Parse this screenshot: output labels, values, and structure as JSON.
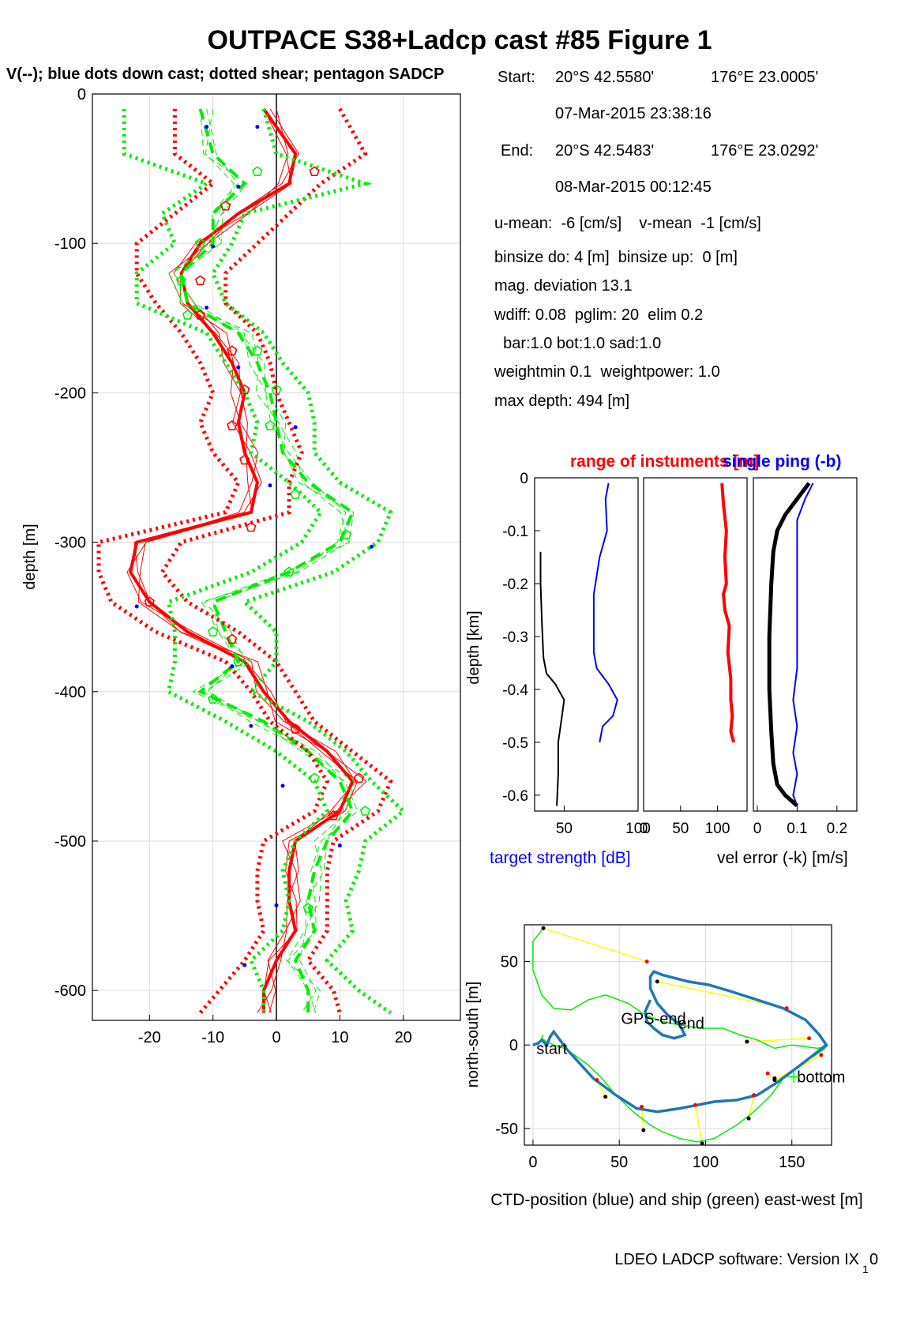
{
  "figure": {
    "title": "OUTPACE S38+Ladcp cast #85  Figure 1",
    "subtitle": "V(--); blue dots down cast; dotted shear; pentagon SADCP",
    "software_note_main": "LDEO LADCP software: Version IX",
    "software_note_sub": "1",
    "software_note_tail": "0"
  },
  "info": {
    "start": {
      "label": "Start:",
      "lat": "20°S 42.5580'",
      "lon": "176°E 23.0005'",
      "time": "07-Mar-2015 23:38:16"
    },
    "end": {
      "label": "End:",
      "lat": "20°S 42.5483'",
      "lon": "176°E 23.0292'",
      "time": "08-Mar-2015 00:12:45"
    },
    "lines": [
      "u-mean:  -6 [cm/s]    v-mean  -1 [cm/s]",
      "binsize do: 4 [m]  binsize up:  0 [m]",
      "mag. deviation 13.1",
      "wdiff: 0.08  pglim: 20  elim 0.2",
      "  bar:1.0 bot:1.0 sad:1.0",
      "weightmin 0.1  weightpower: 1.0",
      "max depth: 494 [m]"
    ]
  },
  "colors": {
    "red": "#ff0000",
    "green": "#00ee00",
    "blue": "#0000ff",
    "yellow": "#ffff00",
    "ctd_blue": "#1f77b4",
    "grid": "#dcdcdc"
  },
  "chart_data": [
    {
      "id": "velocity_profile",
      "type": "line",
      "ylabel": "depth [m]",
      "xlim": [
        -29,
        29
      ],
      "ylim": [
        -620,
        0
      ],
      "xticks": [
        -20,
        -10,
        0,
        10,
        20
      ],
      "yticks": [
        0,
        -100,
        -200,
        -300,
        -400,
        -500,
        -600
      ],
      "grid": true,
      "depths": [
        -10,
        -40,
        -60,
        -80,
        -100,
        -120,
        -140,
        -160,
        -180,
        -200,
        -220,
        -240,
        -260,
        -280,
        -300,
        -320,
        -340,
        -360,
        -380,
        -400,
        -420,
        -440,
        -460,
        -480,
        -500,
        -520,
        -540,
        -560,
        -580,
        -600,
        -615
      ],
      "series": [
        {
          "name": "u",
          "style": "red-solid",
          "values": [
            -2,
            3,
            2,
            -6,
            -12,
            -15,
            -14,
            -10,
            -7,
            -5,
            -6,
            -5,
            -3,
            -4,
            -22,
            -23,
            -20,
            -14,
            -5,
            -2,
            2,
            8,
            12,
            10,
            3,
            2,
            2,
            3,
            0,
            -2,
            -2
          ]
        },
        {
          "name": "v",
          "style": "green-dashed",
          "values": [
            -12,
            -10,
            -5,
            -10,
            -10,
            -15,
            -14,
            -6,
            -3,
            -1,
            0,
            1,
            5,
            12,
            10,
            2,
            -10,
            -8,
            -6,
            -12,
            -2,
            5,
            10,
            12,
            8,
            6,
            5,
            6,
            3,
            5,
            5
          ]
        },
        {
          "name": "u-shear",
          "style": "red-dotted",
          "values": [
            -16,
            -16,
            -10,
            -16,
            -22,
            -22,
            -19,
            -15,
            -12,
            -10,
            -12,
            -10,
            -6,
            -8,
            -28,
            -28,
            -26,
            -19,
            -8,
            -4,
            -1,
            5,
            8,
            6,
            -2,
            -3,
            -3,
            -2,
            -5,
            -9,
            -12
          ]
        },
        {
          "name": "u-shear-hi",
          "style": "red-dotted",
          "values": [
            10,
            14,
            7,
            2,
            -3,
            -8,
            -8,
            -3,
            -1,
            0,
            2,
            4,
            2,
            2,
            -15,
            -18,
            -14,
            -6,
            0,
            3,
            6,
            12,
            18,
            16,
            9,
            8,
            8,
            8,
            5,
            9,
            10
          ]
        },
        {
          "name": "v-shear",
          "style": "green-dotted",
          "values": [
            -24,
            -24,
            -11,
            -18,
            -16,
            -22,
            -22,
            -11,
            -8,
            -5,
            -3,
            -4,
            2,
            7,
            4,
            -4,
            -17,
            -16,
            -16,
            -17,
            -8,
            0,
            6,
            8,
            3,
            1,
            2,
            1,
            -4,
            -2,
            -2
          ]
        },
        {
          "name": "v-shear-hi",
          "style": "green-dotted",
          "values": [
            -2,
            0,
            14,
            -5,
            -7,
            -10,
            -8,
            -2,
            1,
            5,
            6,
            6,
            10,
            18,
            16,
            9,
            -5,
            0,
            0,
            -4,
            5,
            11,
            15,
            20,
            14,
            13,
            11,
            12,
            8,
            13,
            18
          ]
        }
      ],
      "sadcp_pentagon_u": [
        {
          "x": 6,
          "y": -52
        },
        {
          "x": -8,
          "y": -75
        },
        {
          "x": -12,
          "y": -125
        },
        {
          "x": -12,
          "y": -148
        },
        {
          "x": -7,
          "y": -172
        },
        {
          "x": -5,
          "y": -198
        },
        {
          "x": -7,
          "y": -222
        },
        {
          "x": -5,
          "y": -245
        },
        {
          "x": -4,
          "y": -290
        },
        {
          "x": -20,
          "y": -340
        },
        {
          "x": -7,
          "y": -365
        },
        {
          "x": 3,
          "y": -425
        },
        {
          "x": 13,
          "y": -458
        },
        {
          "x": 9,
          "y": -483
        }
      ],
      "sadcp_pentagon_v": [
        {
          "x": -3,
          "y": -52
        },
        {
          "x": -12,
          "y": -100
        },
        {
          "x": -15,
          "y": -125
        },
        {
          "x": -14,
          "y": -148
        },
        {
          "x": -3,
          "y": -172
        },
        {
          "x": 0,
          "y": -198
        },
        {
          "x": -1,
          "y": -222
        },
        {
          "x": 3,
          "y": -268
        },
        {
          "x": 11,
          "y": -295
        },
        {
          "x": 2,
          "y": -320
        },
        {
          "x": -10,
          "y": -360
        },
        {
          "x": -6,
          "y": -380
        },
        {
          "x": -10,
          "y": -405
        },
        {
          "x": 6,
          "y": -458
        },
        {
          "x": 14,
          "y": -480
        },
        {
          "x": 5,
          "y": -545
        }
      ],
      "downcast_dots": [
        {
          "x": -11,
          "y": -22
        },
        {
          "x": -3,
          "y": -22
        },
        {
          "x": -6,
          "y": -62
        },
        {
          "x": -10,
          "y": -102
        },
        {
          "x": -11,
          "y": -143
        },
        {
          "x": -6,
          "y": -183
        },
        {
          "x": 3,
          "y": -223
        },
        {
          "x": -1,
          "y": -262
        },
        {
          "x": 15,
          "y": -303
        },
        {
          "x": -22,
          "y": -343
        },
        {
          "x": -7,
          "y": -383
        },
        {
          "x": -4,
          "y": -423
        },
        {
          "x": 1,
          "y": -463
        },
        {
          "x": 10,
          "y": -503
        },
        {
          "x": 0,
          "y": -543
        },
        {
          "x": -5,
          "y": -583
        }
      ]
    },
    {
      "id": "target_strength",
      "type": "line",
      "ylabel": "depth [km]",
      "xlabel": "target strength [dB]",
      "xlim": [
        30,
        100
      ],
      "ylim": [
        -0.63,
        0
      ],
      "xticks": [
        50,
        100
      ],
      "yticks": [
        0,
        -0.1,
        -0.2,
        -0.3,
        -0.4,
        -0.5,
        -0.6
      ],
      "series": [
        {
          "name": "target strength",
          "color": "blue",
          "x": [
            80,
            78,
            79,
            74,
            70,
            70,
            70,
            72,
            80,
            86,
            83,
            76,
            74
          ],
          "y": [
            -0.01,
            -0.04,
            -0.1,
            -0.15,
            -0.22,
            -0.28,
            -0.33,
            -0.36,
            -0.39,
            -0.42,
            -0.45,
            -0.47,
            -0.5
          ]
        },
        {
          "name": "range",
          "color": "black",
          "x": [
            34,
            34,
            35,
            36,
            38,
            44,
            50,
            48,
            46,
            46,
            45
          ],
          "y": [
            -0.14,
            -0.2,
            -0.28,
            -0.34,
            -0.37,
            -0.39,
            -0.42,
            -0.46,
            -0.5,
            -0.56,
            -0.62
          ]
        }
      ]
    },
    {
      "id": "range_of_instruments",
      "type": "line",
      "title": "range of instuments [m]",
      "xlim": [
        0,
        140
      ],
      "ylim": [
        -0.63,
        0
      ],
      "xticks": [
        0,
        50,
        100
      ],
      "series": [
        {
          "name": "range",
          "color": "red",
          "x": [
            106,
            108,
            112,
            110,
            112,
            108,
            110,
            116,
            114,
            118,
            118,
            120,
            118,
            122
          ],
          "y": [
            -0.01,
            -0.05,
            -0.1,
            -0.15,
            -0.2,
            -0.22,
            -0.25,
            -0.28,
            -0.33,
            -0.38,
            -0.42,
            -0.45,
            -0.48,
            -0.5
          ]
        }
      ]
    },
    {
      "id": "single_ping",
      "type": "line",
      "title": "single ping (-b)",
      "xlabel": "vel error (-k) [m/s]",
      "xlim": [
        -0.01,
        0.25
      ],
      "ylim": [
        -0.63,
        0
      ],
      "xticks": [
        0,
        0.1,
        0.2
      ],
      "series": [
        {
          "name": "single ping",
          "color": "blue",
          "x": [
            0.14,
            0.12,
            0.1,
            0.1,
            0.1,
            0.1,
            0.1,
            0.09,
            0.1,
            0.09,
            0.1,
            0.09,
            0.1
          ],
          "y": [
            -0.01,
            -0.04,
            -0.08,
            -0.15,
            -0.22,
            -0.3,
            -0.36,
            -0.42,
            -0.47,
            -0.52,
            -0.56,
            -0.6,
            -0.62
          ]
        },
        {
          "name": "vel error",
          "color": "black",
          "x": [
            0.13,
            0.1,
            0.07,
            0.05,
            0.04,
            0.035,
            0.03,
            0.03,
            0.035,
            0.04,
            0.05,
            0.07,
            0.1
          ],
          "y": [
            -0.01,
            -0.04,
            -0.07,
            -0.1,
            -0.14,
            -0.2,
            -0.3,
            -0.4,
            -0.48,
            -0.54,
            -0.58,
            -0.6,
            -0.62
          ]
        }
      ]
    },
    {
      "id": "positions",
      "type": "line",
      "xlabel": "CTD-position (blue) and ship (green) east-west [m]",
      "ylabel": "north-south [m]",
      "xlim": [
        -5,
        173
      ],
      "ylim": [
        -60,
        72
      ],
      "xticks": [
        0,
        50,
        100,
        150
      ],
      "yticks": [
        50,
        0,
        -50
      ],
      "annotations": [
        {
          "text": "start",
          "x": 2,
          "y": -2
        },
        {
          "text": "GPS-end",
          "x": 51,
          "y": 16
        },
        {
          "text": "end",
          "x": 84,
          "y": 13
        },
        {
          "text": "bottom",
          "x": 153,
          "y": -19
        }
      ],
      "ctd_track": {
        "x": [
          0,
          3,
          5,
          8,
          10,
          12,
          20,
          35,
          48,
          60,
          72,
          85,
          95,
          105,
          118,
          130,
          142,
          155,
          165,
          170,
          166,
          158,
          145,
          130,
          115,
          102,
          90,
          75,
          70,
          68,
          68,
          72,
          78,
          85,
          88,
          82,
          75,
          70,
          66,
          65,
          68
        ],
        "y": [
          0,
          1,
          3,
          0,
          5,
          8,
          -3,
          -20,
          -30,
          -38,
          -40,
          -38,
          -36,
          -34,
          -33,
          -30,
          -22,
          -12,
          -4,
          0,
          6,
          15,
          22,
          27,
          32,
          36,
          38,
          42,
          44,
          41,
          34,
          25,
          18,
          12,
          6,
          4,
          6,
          10,
          14,
          20,
          27
        ]
      },
      "ship_track": {
        "x": [
          6,
          0,
          0,
          5,
          12,
          22,
          32,
          42,
          55,
          65,
          75,
          85,
          97,
          110,
          120,
          130,
          140,
          150,
          165,
          170,
          168,
          158,
          145,
          138,
          128,
          118,
          105,
          95,
          85,
          75,
          68,
          58,
          48,
          40,
          32,
          24,
          18,
          12,
          8,
          5,
          6
        ],
        "y": [
          70,
          62,
          45,
          30,
          22,
          21,
          27,
          30,
          25,
          18,
          14,
          12,
          10,
          10,
          6,
          3,
          -2,
          0,
          -2,
          -1,
          -3,
          -10,
          -20,
          -30,
          -40,
          -48,
          -56,
          -58,
          -56,
          -52,
          -48,
          -40,
          -30,
          -20,
          -12,
          -6,
          -2,
          0,
          2,
          4,
          6
        ]
      },
      "matches": [
        {
          "ctd": {
            "x": 136,
            "y": -17
          },
          "ship": {
            "x": 140,
            "y": -20
          }
        },
        {
          "ctd": {
            "x": 128,
            "y": -30
          },
          "ship": {
            "x": 125,
            "y": -44
          }
        },
        {
          "ctd": {
            "x": 94,
            "y": -36
          },
          "ship": {
            "x": 98,
            "y": -59
          }
        },
        {
          "ctd": {
            "x": 63,
            "y": -37
          },
          "ship": {
            "x": 64,
            "y": -51
          }
        },
        {
          "ctd": {
            "x": 37,
            "y": -21
          },
          "ship": {
            "x": 42,
            "y": -31
          }
        },
        {
          "ctd": {
            "x": 66,
            "y": 50
          },
          "ship": {
            "x": 6,
            "y": 70
          }
        },
        {
          "ctd": {
            "x": 147,
            "y": 22
          },
          "ship": {
            "x": 72,
            "y": 38
          }
        },
        {
          "ctd": {
            "x": 160,
            "y": 4
          },
          "ship": {
            "x": 124,
            "y": 2
          }
        },
        {
          "ctd": {
            "x": 167,
            "y": -6
          },
          "ship": {
            "x": 140,
            "y": -21
          }
        }
      ]
    }
  ]
}
